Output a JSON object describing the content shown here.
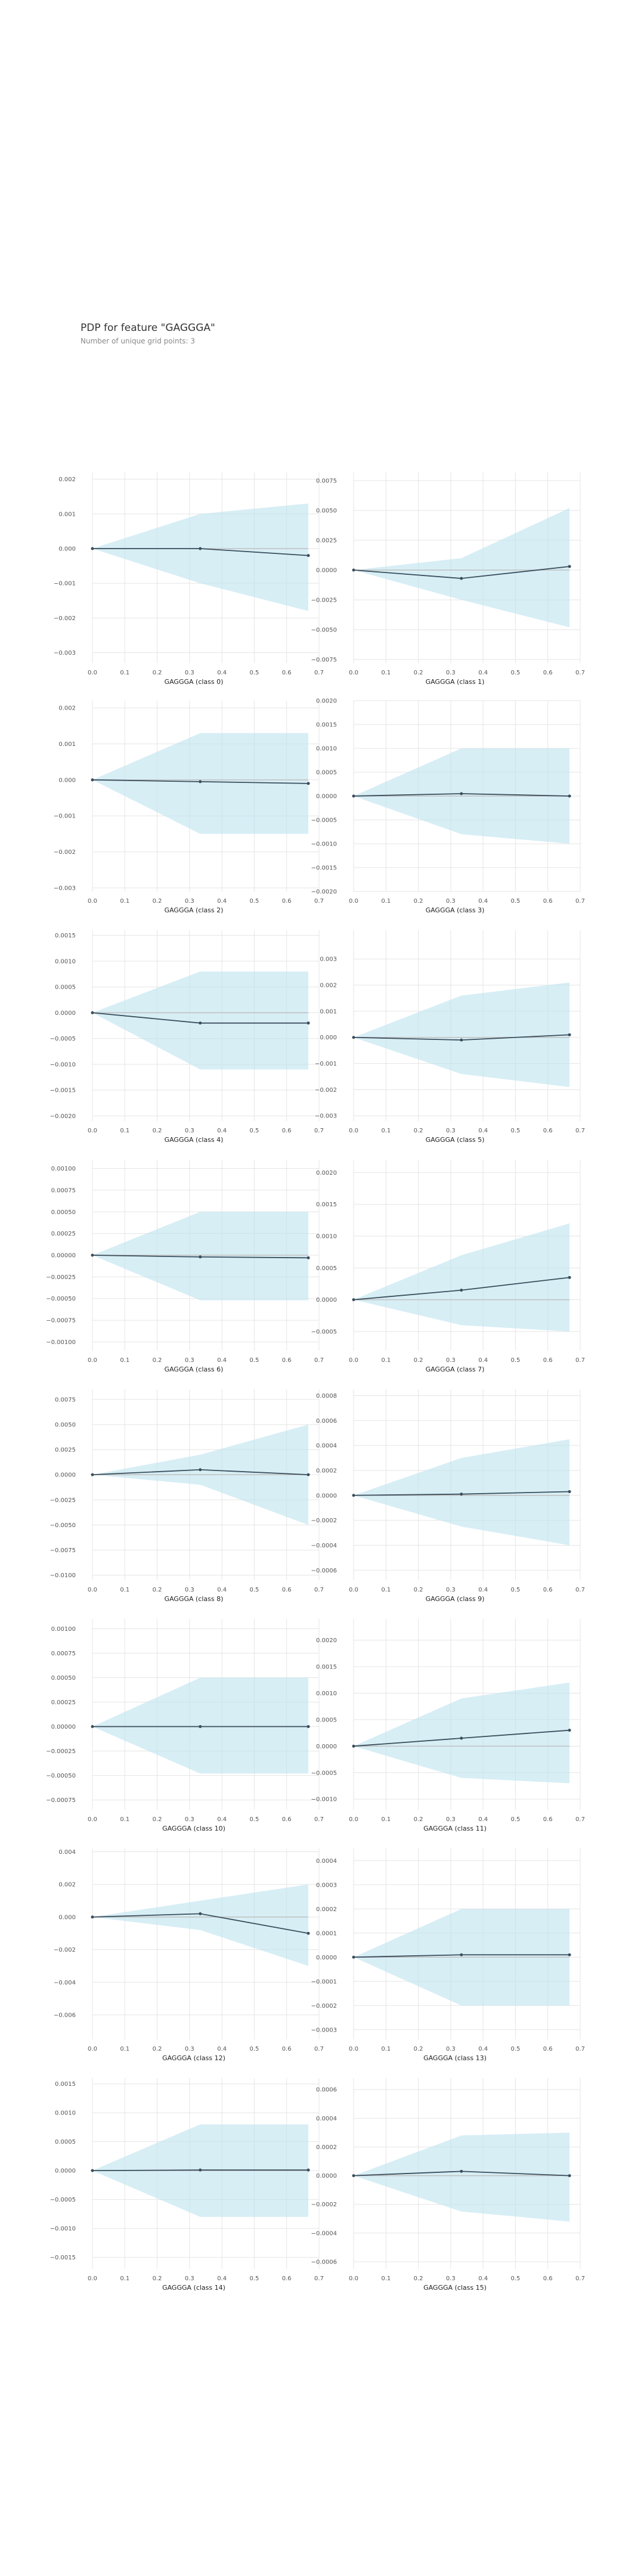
{
  "title": "PDP for feature \"GAGGGA\"",
  "subtitle": "Number of unique grid points: 3",
  "colors": {
    "band": "#bde2ef",
    "line": "#3b4e5c",
    "baseline": "#c0c0c0",
    "grid": "#e5e5e5"
  },
  "chart_data": {
    "type": "line",
    "x_ticks": [
      "0.0",
      "0.1",
      "0.2",
      "0.3",
      "0.4",
      "0.5",
      "0.6",
      "0.7"
    ],
    "x_range": [
      0,
      0.7
    ],
    "x": [
      0.0,
      0.333,
      0.667
    ],
    "panels": [
      {
        "xlabel": "GAGGGA (class 0)",
        "ylim": [
          -0.0033,
          0.0022
        ],
        "yticks": [
          "0.002",
          "0.001",
          "0.000",
          "−0.001",
          "−0.002",
          "−0.003"
        ],
        "ytick_values": [
          0.002,
          0.001,
          0,
          -0.001,
          -0.002,
          -0.003
        ],
        "values": [
          0,
          0,
          -0.0002
        ],
        "upper": [
          0,
          0.001,
          0.0013
        ],
        "lower": [
          0,
          -0.001,
          -0.0018
        ]
      },
      {
        "xlabel": "GAGGGA (class 1)",
        "ylim": [
          -0.0078,
          0.0082
        ],
        "yticks": [
          "0.0075",
          "0.0050",
          "0.0025",
          "0.0000",
          "−0.0025",
          "−0.0050",
          "−0.0075"
        ],
        "ytick_values": [
          0.0075,
          0.005,
          0.0025,
          0,
          -0.0025,
          -0.005,
          -0.0075
        ],
        "values": [
          0,
          -0.0007,
          0.0003
        ],
        "upper": [
          0,
          0.001,
          0.0052
        ],
        "lower": [
          0,
          -0.0025,
          -0.0048
        ]
      },
      {
        "xlabel": "GAGGGA (class 2)",
        "ylim": [
          -0.0031,
          0.0022
        ],
        "yticks": [
          "0.002",
          "0.001",
          "0.000",
          "−0.001",
          "−0.002",
          "−0.003"
        ],
        "ytick_values": [
          0.002,
          0.001,
          0,
          -0.001,
          -0.002,
          -0.003
        ],
        "values": [
          0,
          -5e-05,
          -0.0001
        ],
        "upper": [
          0,
          0.0013,
          0.0013
        ],
        "lower": [
          0,
          -0.0015,
          -0.0015
        ]
      },
      {
        "xlabel": "GAGGGA (class 3)",
        "ylim": [
          -0.002,
          0.002
        ],
        "yticks": [
          "0.0020",
          "0.0015",
          "0.0010",
          "0.0005",
          "0.0000",
          "−0.0005",
          "−0.0010",
          "−0.0015",
          "−0.0020"
        ],
        "ytick_values": [
          0.002,
          0.0015,
          0.001,
          0.0005,
          0,
          -0.0005,
          -0.001,
          -0.0015,
          -0.002
        ],
        "values": [
          0,
          5e-05,
          0
        ],
        "upper": [
          0,
          0.001,
          0.001
        ],
        "lower": [
          0,
          -0.0008,
          -0.001
        ]
      },
      {
        "xlabel": "GAGGGA (class 4)",
        "ylim": [
          -0.0021,
          0.0016
        ],
        "yticks": [
          "0.0015",
          "0.0010",
          "0.0005",
          "0.0000",
          "−0.0005",
          "−0.0010",
          "−0.0015",
          "−0.0020"
        ],
        "ytick_values": [
          0.0015,
          0.001,
          0.0005,
          0,
          -0.0005,
          -0.001,
          -0.0015,
          -0.002
        ],
        "values": [
          0,
          -0.0002,
          -0.0002
        ],
        "upper": [
          0,
          0.0008,
          0.0008
        ],
        "lower": [
          0,
          -0.0011,
          -0.0011
        ]
      },
      {
        "xlabel": "GAGGGA (class 5)",
        "ylim": [
          -0.0032,
          0.0041
        ],
        "yticks": [
          "0.003",
          "0.002",
          "0.001",
          "0.000",
          "−0.001",
          "−0.002",
          "−0.003"
        ],
        "ytick_values": [
          0.003,
          0.002,
          0.001,
          0,
          -0.001,
          -0.002,
          -0.003
        ],
        "values": [
          0,
          -0.0001,
          0.0001
        ],
        "upper": [
          0,
          0.0016,
          0.0021
        ],
        "lower": [
          0,
          -0.0014,
          -0.0019
        ]
      },
      {
        "xlabel": "GAGGGA (class 6)",
        "ylim": [
          -0.0011,
          0.0011
        ],
        "yticks": [
          "0.00100",
          "0.00075",
          "0.00050",
          "0.00025",
          "0.00000",
          "−0.00025",
          "−0.00050",
          "−0.00075",
          "−0.00100"
        ],
        "ytick_values": [
          0.001,
          0.00075,
          0.0005,
          0.00025,
          0,
          -0.00025,
          -0.0005,
          -0.00075,
          -0.001
        ],
        "values": [
          0,
          -2e-05,
          -3e-05
        ],
        "upper": [
          0,
          0.0005,
          0.0005
        ],
        "lower": [
          0,
          -0.00052,
          -0.00052
        ]
      },
      {
        "xlabel": "GAGGGA (class 7)",
        "ylim": [
          -0.0008,
          0.0022
        ],
        "yticks": [
          "0.0020",
          "0.0015",
          "0.0010",
          "0.0005",
          "0.0000",
          "−0.0005"
        ],
        "ytick_values": [
          0.002,
          0.0015,
          0.001,
          0.0005,
          0,
          -0.0005
        ],
        "values": [
          0,
          0.00015,
          0.00035
        ],
        "upper": [
          0,
          0.0007,
          0.0012
        ],
        "lower": [
          0,
          -0.0004,
          -0.0005
        ]
      },
      {
        "xlabel": "GAGGGA (class 8)",
        "ylim": [
          -0.0105,
          0.0085
        ],
        "yticks": [
          "0.0075",
          "0.0050",
          "0.0025",
          "0.0000",
          "−0.0025",
          "−0.0050",
          "−0.0075",
          "−0.0100"
        ],
        "ytick_values": [
          0.0075,
          0.005,
          0.0025,
          0,
          -0.0025,
          -0.005,
          -0.0075,
          -0.01
        ],
        "values": [
          0,
          0.0005,
          0
        ],
        "upper": [
          0,
          0.002,
          0.005
        ],
        "lower": [
          0,
          -0.001,
          -0.005
        ]
      },
      {
        "xlabel": "GAGGGA (class 9)",
        "ylim": [
          -0.00068,
          0.00085
        ],
        "yticks": [
          "0.0008",
          "0.0006",
          "0.0004",
          "0.0002",
          "0.0000",
          "−0.0002",
          "−0.0004",
          "−0.0006"
        ],
        "ytick_values": [
          0.0008,
          0.0006,
          0.0004,
          0.0002,
          0,
          -0.0002,
          -0.0004,
          -0.0006
        ],
        "values": [
          0,
          1e-05,
          3e-05
        ],
        "upper": [
          0,
          0.0003,
          0.00045
        ],
        "lower": [
          0,
          -0.00025,
          -0.0004
        ]
      },
      {
        "xlabel": "GAGGGA (class 10)",
        "ylim": [
          -0.00085,
          0.0011
        ],
        "yticks": [
          "0.00100",
          "0.00075",
          "0.00050",
          "0.00025",
          "0.00000",
          "−0.00025",
          "−0.00050",
          "−0.00075"
        ],
        "ytick_values": [
          0.001,
          0.00075,
          0.0005,
          0.00025,
          0,
          -0.00025,
          -0.0005,
          -0.00075
        ],
        "values": [
          0,
          0,
          0
        ],
        "upper": [
          0,
          0.0005,
          0.0005
        ],
        "lower": [
          0,
          -0.00048,
          -0.00048
        ]
      },
      {
        "xlabel": "GAGGGA (class 11)",
        "ylim": [
          -0.0012,
          0.0024
        ],
        "yticks": [
          "0.0020",
          "0.0015",
          "0.0010",
          "0.0005",
          "0.0000",
          "−0.0005",
          "−0.0010"
        ],
        "ytick_values": [
          0.002,
          0.0015,
          0.001,
          0.0005,
          0,
          -0.0005,
          -0.001
        ],
        "values": [
          0,
          0.00015,
          0.0003
        ],
        "upper": [
          0,
          0.0009,
          0.0012
        ],
        "lower": [
          0,
          -0.0006,
          -0.0007
        ]
      },
      {
        "xlabel": "GAGGGA (class 12)",
        "ylim": [
          -0.0075,
          0.0042
        ],
        "yticks": [
          "0.004",
          "0.002",
          "0.000",
          "−0.002",
          "−0.004",
          "−0.006"
        ],
        "ytick_values": [
          0.004,
          0.002,
          0,
          -0.002,
          -0.004,
          -0.006
        ],
        "values": [
          0,
          0.0002,
          -0.001
        ],
        "upper": [
          0,
          0.001,
          0.002
        ],
        "lower": [
          0,
          -0.0008,
          -0.003
        ]
      },
      {
        "xlabel": "GAGGGA (class 13)",
        "ylim": [
          -0.00034,
          0.00045
        ],
        "yticks": [
          "0.0004",
          "0.0003",
          "0.0002",
          "0.0001",
          "0.0000",
          "−0.0001",
          "−0.0002",
          "−0.0003"
        ],
        "ytick_values": [
          0.0004,
          0.0003,
          0.0002,
          0.0001,
          0,
          -0.0001,
          -0.0002,
          -0.0003
        ],
        "values": [
          0,
          1e-05,
          1e-05
        ],
        "upper": [
          0,
          0.0002,
          0.0002
        ],
        "lower": [
          0,
          -0.0002,
          -0.0002
        ]
      },
      {
        "xlabel": "GAGGGA (class 14)",
        "ylim": [
          -0.0017,
          0.0016
        ],
        "yticks": [
          "0.0015",
          "0.0010",
          "0.0005",
          "0.0000",
          "−0.0005",
          "−0.0010",
          "−0.0015"
        ],
        "ytick_values": [
          0.0015,
          0.001,
          0.0005,
          0,
          -0.0005,
          -0.001,
          -0.0015
        ],
        "values": [
          0,
          1e-05,
          1e-05
        ],
        "upper": [
          0,
          0.0008,
          0.0008
        ],
        "lower": [
          0,
          -0.0008,
          -0.0008
        ]
      },
      {
        "xlabel": "GAGGGA (class 15)",
        "ylim": [
          -0.00065,
          0.00068
        ],
        "yticks": [
          "0.0006",
          "0.0004",
          "0.0002",
          "0.0000",
          "−0.0002",
          "−0.0004",
          "−0.0006"
        ],
        "ytick_values": [
          0.0006,
          0.0004,
          0.0002,
          0,
          -0.0002,
          -0.0004,
          -0.0006
        ],
        "values": [
          0,
          3e-05,
          0
        ],
        "upper": [
          0,
          0.00028,
          0.0003
        ],
        "lower": [
          0,
          -0.00025,
          -0.00032
        ]
      }
    ]
  }
}
